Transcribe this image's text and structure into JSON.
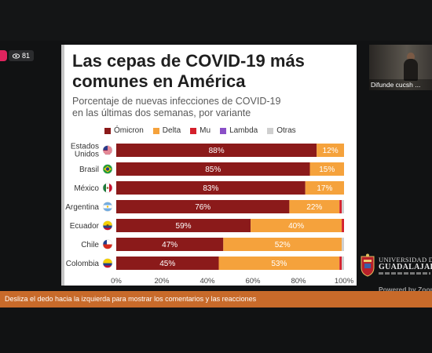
{
  "stream": {
    "viewer_count": "81",
    "camera_caption": "Difunde cucsh ...",
    "university_line1": "UNIVERSIDAD DE",
    "university_line2": "GUADALAJARA",
    "powered_by": "Powered by Zoom",
    "swipe_hint": "Desliza el dedo hacia la izquierda para mostrar los comentarios y las reacciones",
    "live_color": "#e0245e",
    "banner_color": "#c86a2a"
  },
  "slide": {
    "title_line1": "Las cepas de COVID-19 más",
    "title_line2": "comunes en América",
    "subtitle_line1": "Porcentaje de nuevas infecciones de COVID-19",
    "subtitle_line2": "en las últimas dos semanas, por variante"
  },
  "chart_data": {
    "type": "bar",
    "orientation": "horizontal",
    "stacked": true,
    "categories": [
      "Estados Unidos",
      "Brasil",
      "México",
      "Argentina",
      "Ecuador",
      "Chile",
      "Colombia"
    ],
    "category_lines": [
      [
        "Estados",
        "Unidos"
      ],
      [
        "Brasil"
      ],
      [
        "México"
      ],
      [
        "Argentina"
      ],
      [
        "Ecuador"
      ],
      [
        "Chile"
      ],
      [
        "Colombia"
      ]
    ],
    "flags": [
      "us-flag-icon",
      "brazil-flag-icon",
      "mexico-flag-icon",
      "argentina-flag-icon",
      "ecuador-flag-icon",
      "chile-flag-icon",
      "colombia-flag-icon"
    ],
    "series": [
      {
        "name": "Ómicron",
        "color": "#8b1a1a",
        "values": [
          88,
          85,
          83,
          76,
          59,
          47,
          45
        ]
      },
      {
        "name": "Delta",
        "color": "#f5a23c",
        "values": [
          12,
          15,
          17,
          22,
          40,
          52,
          53
        ]
      },
      {
        "name": "Mu",
        "color": "#d4202c",
        "values": [
          0,
          0,
          0,
          1,
          1,
          0,
          1
        ]
      },
      {
        "name": "Lambda",
        "color": "#8a4fc7",
        "values": [
          0,
          0,
          0,
          0,
          0,
          0,
          0
        ]
      },
      {
        "name": "Otras",
        "color": "#cfcfcf",
        "values": [
          0,
          0,
          0,
          1,
          0,
          1,
          1
        ]
      }
    ],
    "data_labels": {
      "Ómicron": [
        "88%",
        "85%",
        "83%",
        "76%",
        "59%",
        "47%",
        "45%"
      ],
      "Delta": [
        "12%",
        "15%",
        "17%",
        "22%",
        "40%",
        "52%",
        "53%"
      ]
    },
    "xlim": [
      0,
      100
    ],
    "x_ticks": [
      "0%",
      "20%",
      "40%",
      "60%",
      "80%",
      "100%"
    ],
    "legend_position": "top"
  }
}
